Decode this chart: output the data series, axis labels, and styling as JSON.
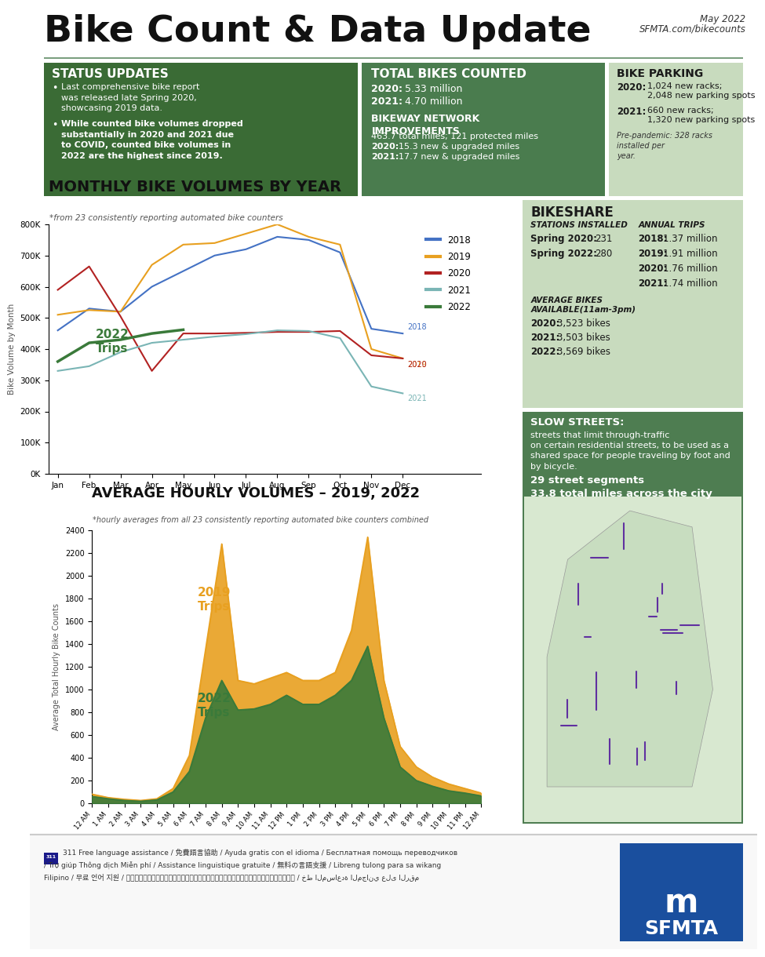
{
  "title": "Bike Count & Data Update",
  "subtitle_date": "May 2022",
  "subtitle_url": "SFMTA.com/bikecounts",
  "header_line_color": "#7a9e7e",
  "status_updates_title": "STATUS UPDATES",
  "status_bullet1": "Last comprehensive bike report was released late Spring 2020, showcasing 2019 data.",
  "status_bullet2": "While counted bike volumes dropped substantially in 2020 and 2021 due to COVID, counted bike volumes in 2022 are the highest since 2019.",
  "total_bikes_title": "TOTAL BIKES COUNTED",
  "bikeway_title": "BIKEWAY NETWORK\nIMPROVEMENTS",
  "bikeway_line1": "463.7 total miles; 121 protected miles",
  "bikeway_2020": "15.3 new & upgraded miles",
  "bikeway_2021": "17.7 new & upgraded miles",
  "months": [
    "Jan",
    "Feb",
    "Mar",
    "Apr",
    "May",
    "Jun",
    "Jul",
    "Aug",
    "Sep",
    "Oct",
    "Nov",
    "Dec"
  ],
  "monthly_2018": [
    460000,
    530000,
    520000,
    600000,
    650000,
    700000,
    720000,
    760000,
    750000,
    710000,
    465000,
    450000
  ],
  "monthly_2019": [
    510000,
    525000,
    520000,
    670000,
    735000,
    740000,
    770000,
    800000,
    760000,
    735000,
    400000,
    370000
  ],
  "monthly_2020": [
    590000,
    665000,
    505000,
    330000,
    450000,
    450000,
    452000,
    455000,
    455000,
    458000,
    380000,
    370000
  ],
  "monthly_2021": [
    330000,
    345000,
    390000,
    420000,
    430000,
    440000,
    448000,
    460000,
    458000,
    435000,
    280000,
    258000
  ],
  "monthly_2022": [
    360000,
    420000,
    430000,
    450000,
    462000,
    null,
    null,
    null,
    null,
    null,
    null,
    null
  ],
  "color_2018": "#4472c4",
  "color_2019": "#e8a020",
  "color_2020": "#b22222",
  "color_2021": "#7ab5b5",
  "color_2022": "#3a7a3a",
  "monthly_yticks": [
    0,
    100000,
    200000,
    300000,
    400000,
    500000,
    600000,
    700000,
    800000
  ],
  "bikeshare_stations_2020": "231",
  "bikeshare_stations_2022": "280",
  "bikeshare_trips_2018": "1.37 million",
  "bikeshare_trips_2019": "1.91 million",
  "bikeshare_trips_2020": "1.76 million",
  "bikeshare_trips_2021": "1.74 million",
  "hourly_hours": [
    "12 AM",
    "1 AM",
    "2 AM",
    "3 AM",
    "4 AM",
    "5 AM",
    "6 AM",
    "7 AM",
    "8 AM",
    "9 AM",
    "10 AM",
    "11 AM",
    "12 PM",
    "1 PM",
    "2 PM",
    "3 PM",
    "4 PM",
    "5 PM",
    "6 PM",
    "7 PM",
    "8 PM",
    "9 PM",
    "10 PM",
    "11 PM",
    "12 AM"
  ],
  "hourly_2019": [
    80,
    50,
    35,
    25,
    40,
    130,
    420,
    1350,
    2280,
    1080,
    1050,
    1100,
    1150,
    1080,
    1080,
    1150,
    1520,
    2340,
    1080,
    500,
    320,
    230,
    170,
    130,
    90
  ],
  "hourly_2022": [
    60,
    40,
    25,
    18,
    30,
    100,
    280,
    750,
    1080,
    820,
    830,
    870,
    950,
    870,
    870,
    950,
    1080,
    1380,
    750,
    320,
    200,
    150,
    110,
    90,
    65
  ],
  "hourly_yticks": [
    0,
    200,
    400,
    600,
    800,
    1000,
    1200,
    1400,
    1600,
    1800,
    2000,
    2200,
    2400
  ],
  "dark_green": "#3a6b35",
  "mid_green": "#4a7c4e",
  "light_green": "#c8dbbe",
  "darker_green_box": "#4e7d51",
  "map_bg": "#d8e8d0",
  "white": "#ffffff",
  "black": "#1a1a1a",
  "footer_bg": "#f5f5f5"
}
